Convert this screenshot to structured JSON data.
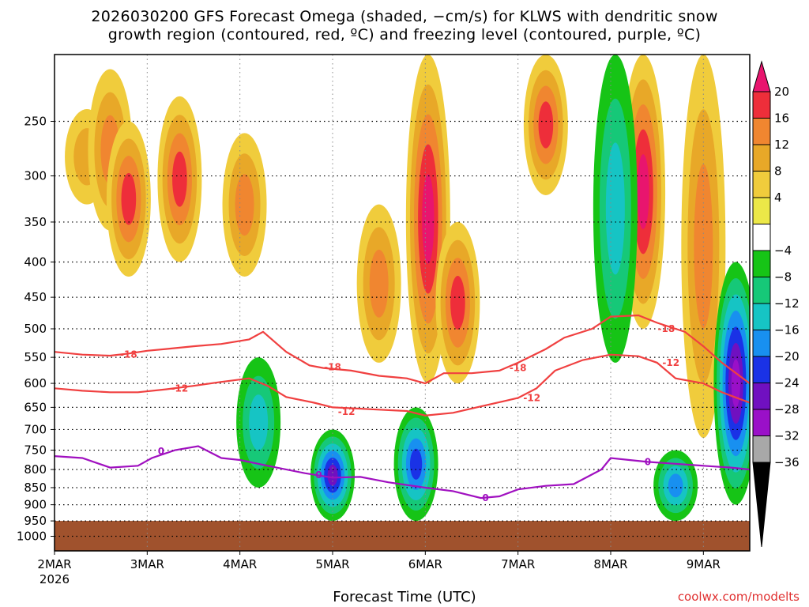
{
  "title_line1": "2026030200 GFS Forecast Omega (shaded, −cm/s) for KLWS with dendritic snow",
  "title_line2": "growth region (contoured, red, ºC) and freezing level (contoured, purple, ºC)",
  "xlabel": "Forecast Time (UTC)",
  "credit": "coolwx.com/modelts",
  "year_label": "2026",
  "chart_data": {
    "type": "heatmap",
    "title": "2026030200 GFS Forecast Omega (shaded, −cm/s) for KLWS with dendritic snow growth region (contoured, red, ºC) and freezing level (contoured, purple, ºC)",
    "xlabel": "Forecast Time (UTC)",
    "ylabel": "",
    "x_range_days": [
      2.0,
      9.5
    ],
    "y_range_hpa": [
      1050,
      200
    ],
    "y_scale": "log-pressure (inverted)",
    "grid": true,
    "x_ticks": [
      {
        "label": "2MAR",
        "day": 2
      },
      {
        "label": "3MAR",
        "day": 3
      },
      {
        "label": "4MAR",
        "day": 4
      },
      {
        "label": "5MAR",
        "day": 5
      },
      {
        "label": "6MAR",
        "day": 6
      },
      {
        "label": "7MAR",
        "day": 7
      },
      {
        "label": "8MAR",
        "day": 8
      },
      {
        "label": "9MAR",
        "day": 9
      }
    ],
    "y_ticks": [
      250,
      300,
      350,
      400,
      450,
      500,
      550,
      600,
      650,
      700,
      750,
      800,
      850,
      900,
      950,
      1000
    ],
    "colorbar": {
      "levels": [
        20,
        16,
        12,
        8,
        4,
        -4,
        -8,
        -12,
        -16,
        -20,
        -24,
        -28,
        -32,
        -36
      ],
      "colors": [
        "#e8156e",
        "#ee2e3a",
        "#f08630",
        "#e8a828",
        "#f0cc3c",
        "#ece848",
        "#ffffff",
        "#16c416",
        "#16c878",
        "#16c4c4",
        "#1890f0",
        "#1a32e6",
        "#7010c0",
        "#9a10c8",
        "#a8a8a8",
        "#000000"
      ]
    },
    "shaded_regions": [
      {
        "type": "upward",
        "day": 2.35,
        "p_top": 240,
        "p_bot": 330,
        "value": 8
      },
      {
        "type": "upward",
        "day": 2.6,
        "p_top": 210,
        "p_bot": 360,
        "value": 12
      },
      {
        "type": "upward",
        "day": 2.8,
        "p_top": 250,
        "p_bot": 420,
        "value": 16
      },
      {
        "type": "upward",
        "day": 3.35,
        "p_top": 230,
        "p_bot": 400,
        "value": 16
      },
      {
        "type": "upward",
        "day": 4.05,
        "p_top": 260,
        "p_bot": 420,
        "value": 12
      },
      {
        "type": "upward",
        "day": 5.5,
        "p_top": 330,
        "p_bot": 560,
        "value": 12
      },
      {
        "type": "upward",
        "day": 6.03,
        "p_top": 200,
        "p_bot": 600,
        "value": 20
      },
      {
        "type": "upward",
        "day": 6.35,
        "p_top": 350,
        "p_bot": 600,
        "value": 16
      },
      {
        "type": "upward",
        "day": 7.3,
        "p_top": 200,
        "p_bot": 320,
        "value": 16
      },
      {
        "type": "upward",
        "day": 8.35,
        "p_top": 200,
        "p_bot": 500,
        "value": 20
      },
      {
        "type": "upward",
        "day": 9.0,
        "p_top": 200,
        "p_bot": 720,
        "value": 12
      },
      {
        "type": "downward",
        "day": 4.2,
        "p_top": 550,
        "p_bot": 850,
        "value": -12
      },
      {
        "type": "downward",
        "day": 5.0,
        "p_top": 700,
        "p_bot": 950,
        "value": -24
      },
      {
        "type": "downward",
        "day": 5.9,
        "p_top": 650,
        "p_bot": 950,
        "value": -20
      },
      {
        "type": "downward",
        "day": 8.05,
        "p_top": 200,
        "p_bot": 560,
        "value": -12
      },
      {
        "type": "downward",
        "day": 8.7,
        "p_top": 750,
        "p_bot": 950,
        "value": -16
      },
      {
        "type": "downward",
        "day": 9.35,
        "p_top": 400,
        "p_bot": 900,
        "value": -28
      }
    ],
    "series": [
      {
        "name": "-18",
        "color": "#f04040",
        "points": [
          [
            2.0,
            540
          ],
          [
            2.3,
            545
          ],
          [
            2.6,
            547
          ],
          [
            2.8,
            543
          ],
          [
            3.0,
            538
          ],
          [
            3.2,
            535
          ],
          [
            3.5,
            530
          ],
          [
            3.8,
            526
          ],
          [
            4.1,
            518
          ],
          [
            4.25,
            505
          ],
          [
            4.5,
            540
          ],
          [
            4.75,
            565
          ],
          [
            4.9,
            570
          ],
          [
            5.2,
            575
          ],
          [
            5.5,
            585
          ],
          [
            5.8,
            590
          ],
          [
            6.0,
            600
          ],
          [
            6.2,
            580
          ],
          [
            6.5,
            580
          ],
          [
            6.8,
            575
          ],
          [
            7.0,
            560
          ],
          [
            7.3,
            535
          ],
          [
            7.5,
            515
          ],
          [
            7.8,
            500
          ],
          [
            8.0,
            480
          ],
          [
            8.3,
            478
          ],
          [
            8.5,
            490
          ],
          [
            8.8,
            505
          ],
          [
            9.0,
            530
          ],
          [
            9.2,
            560
          ],
          [
            9.5,
            600
          ]
        ]
      },
      {
        "name": "-12",
        "color": "#f04040",
        "points": [
          [
            2.0,
            610
          ],
          [
            2.3,
            615
          ],
          [
            2.6,
            618
          ],
          [
            2.9,
            618
          ],
          [
            3.2,
            612
          ],
          [
            3.5,
            605
          ],
          [
            3.8,
            597
          ],
          [
            4.1,
            590
          ],
          [
            4.3,
            605
          ],
          [
            4.5,
            628
          ],
          [
            4.8,
            640
          ],
          [
            5.0,
            650
          ],
          [
            5.2,
            652
          ],
          [
            5.5,
            655
          ],
          [
            5.8,
            658
          ],
          [
            6.0,
            668
          ],
          [
            6.3,
            662
          ],
          [
            6.6,
            648
          ],
          [
            7.0,
            630
          ],
          [
            7.2,
            610
          ],
          [
            7.4,
            575
          ],
          [
            7.7,
            555
          ],
          [
            8.0,
            545
          ],
          [
            8.3,
            548
          ],
          [
            8.5,
            560
          ],
          [
            8.7,
            590
          ],
          [
            9.0,
            600
          ],
          [
            9.2,
            618
          ],
          [
            9.5,
            640
          ]
        ]
      },
      {
        "name": "0",
        "color": "#a010c0",
        "points": [
          [
            2.0,
            765
          ],
          [
            2.3,
            770
          ],
          [
            2.6,
            795
          ],
          [
            2.9,
            790
          ],
          [
            3.05,
            770
          ],
          [
            3.3,
            750
          ],
          [
            3.55,
            740
          ],
          [
            3.8,
            770
          ],
          [
            4.0,
            775
          ],
          [
            4.3,
            790
          ],
          [
            4.7,
            810
          ],
          [
            5.0,
            822
          ],
          [
            5.3,
            820
          ],
          [
            5.6,
            835
          ],
          [
            6.0,
            850
          ],
          [
            6.3,
            860
          ],
          [
            6.6,
            880
          ],
          [
            6.8,
            875
          ],
          [
            7.0,
            855
          ],
          [
            7.3,
            845
          ],
          [
            7.6,
            840
          ],
          [
            7.9,
            800
          ],
          [
            8.0,
            770
          ],
          [
            8.2,
            775
          ],
          [
            8.4,
            780
          ],
          [
            8.7,
            785
          ],
          [
            9.0,
            790
          ],
          [
            9.3,
            795
          ],
          [
            9.5,
            800
          ]
        ]
      }
    ],
    "contour_labels": [
      {
        "text": "-18",
        "day": 2.8,
        "p": 545,
        "color": "#f04040"
      },
      {
        "text": "-18",
        "day": 5.0,
        "p": 568,
        "color": "#f04040"
      },
      {
        "text": "-18",
        "day": 7.0,
        "p": 570,
        "color": "#f04040"
      },
      {
        "text": "-18",
        "day": 8.6,
        "p": 500,
        "color": "#f04040"
      },
      {
        "text": "-12",
        "day": 3.35,
        "p": 610,
        "color": "#f04040"
      },
      {
        "text": "-12",
        "day": 5.15,
        "p": 660,
        "color": "#f04040"
      },
      {
        "text": "-12",
        "day": 7.15,
        "p": 630,
        "color": "#f04040"
      },
      {
        "text": "-12",
        "day": 8.65,
        "p": 560,
        "color": "#f04040"
      },
      {
        "text": "0",
        "day": 3.15,
        "p": 753,
        "color": "#a010c0"
      },
      {
        "text": "0",
        "day": 4.85,
        "p": 815,
        "color": "#a010c0"
      },
      {
        "text": "0",
        "day": 6.65,
        "p": 880,
        "color": "#a010c0"
      },
      {
        "text": "0",
        "day": 8.4,
        "p": 780,
        "color": "#a010c0"
      }
    ],
    "terrain": {
      "p_surface": 950,
      "color": "#a0522d"
    }
  }
}
